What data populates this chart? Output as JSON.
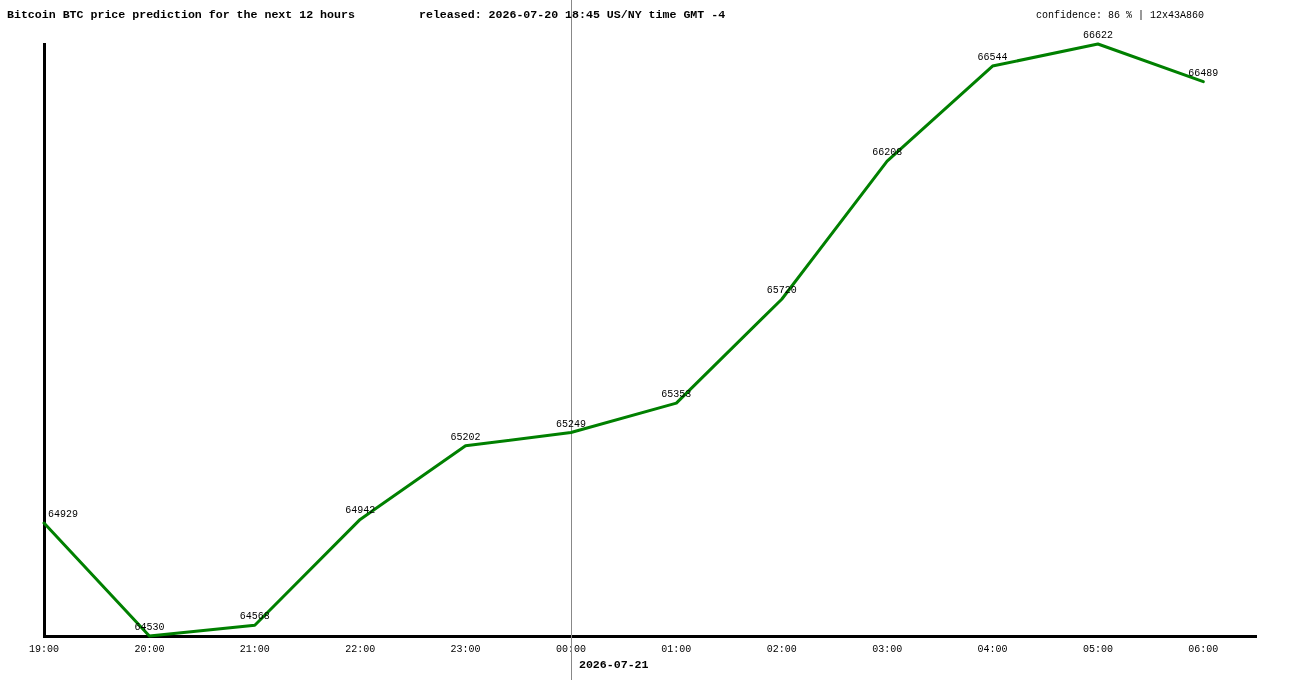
{
  "chart_data": {
    "type": "line",
    "title": "Bitcoin BTC price prediction for the next 12 hours",
    "subtitle": "released: 2026-07-20 18:45 US/NY time GMT -4",
    "annotations": [
      "confidence: 86 % | 12x43A860"
    ],
    "categories": [
      "19:00",
      "20:00",
      "21:00",
      "22:00",
      "23:00",
      "00:00",
      "01:00",
      "02:00",
      "03:00",
      "04:00",
      "05:00",
      "06:00"
    ],
    "values": [
      64929,
      64530,
      64568,
      64942,
      65202,
      65249,
      65353,
      65720,
      66208,
      66544,
      66622,
      66489
    ],
    "color": "#008000",
    "ylim": [
      64530,
      66622
    ],
    "tick_labels": "x",
    "data_labels": true,
    "marker": "none",
    "line_style": "solid",
    "legend": false,
    "ref_lines": [
      {
        "axis": "x",
        "value": "00:00",
        "label": "2026-07-21",
        "color": "#888888"
      }
    ]
  }
}
